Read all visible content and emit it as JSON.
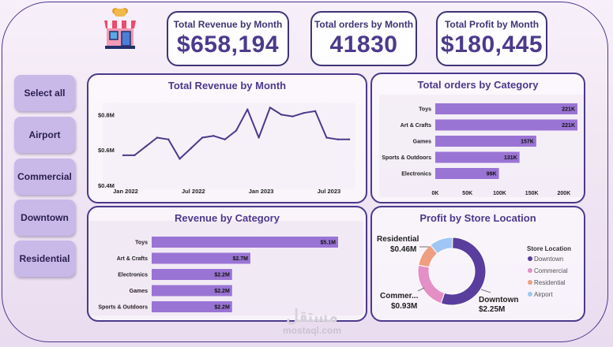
{
  "kpis": [
    {
      "title": "Total Revenue by Month",
      "value": "$658,194"
    },
    {
      "title": "Total orders by Month",
      "value": "41830"
    },
    {
      "title": "Total Profit by Month",
      "value": "$180,445"
    }
  ],
  "slicers": [
    "Select all",
    "Airport",
    "Commercial",
    "Downtown",
    "Residential"
  ],
  "colors": {
    "accent": "#4b3a8c",
    "bar": "#9a74d4",
    "donut": [
      "#5a3e9e",
      "#e48fc6",
      "#ee9f82",
      "#9fc6f4"
    ]
  },
  "watermark": {
    "line1": "مستقل",
    "line2": "mostaql.com"
  },
  "chart_data": [
    {
      "type": "line",
      "title": "Total Revenue by Month",
      "x": [
        "2022-01",
        "2022-02",
        "2022-03",
        "2022-04",
        "2022-05",
        "2022-06",
        "2022-07",
        "2022-08",
        "2022-09",
        "2022-10",
        "2022-11",
        "2022-12",
        "2023-01",
        "2023-02",
        "2023-03",
        "2023-04",
        "2023-05",
        "2023-06",
        "2023-07",
        "2023-08",
        "2023-09"
      ],
      "y": [
        0.57,
        0.57,
        0.62,
        0.67,
        0.66,
        0.55,
        0.61,
        0.67,
        0.68,
        0.66,
        0.71,
        0.83,
        0.67,
        0.84,
        0.8,
        0.79,
        0.81,
        0.82,
        0.67,
        0.66,
        0.66
      ],
      "xticks": [
        "Jan 2022",
        "Jul 2022",
        "Jan 2023",
        "Jul 2023"
      ],
      "yticks": [
        "$0.4M",
        "$0.6M",
        "$0.8M"
      ],
      "ylim": [
        0.4,
        0.9
      ],
      "unit": "$M"
    },
    {
      "type": "bar",
      "orientation": "horizontal",
      "title": "Total orders by Category",
      "categories": [
        "Toys",
        "Art & Crafts",
        "Games",
        "Sports & Outdoors",
        "Electronics"
      ],
      "values": [
        221000,
        221000,
        157000,
        131000,
        99000
      ],
      "labels": [
        "221K",
        "221K",
        "157K",
        "131K",
        "99K"
      ],
      "xticks": [
        "0K",
        "50K",
        "100K",
        "150K",
        "200K"
      ],
      "xlim": [
        0,
        221000
      ]
    },
    {
      "type": "bar",
      "orientation": "horizontal",
      "title": "Revenue by Category",
      "categories": [
        "Toys",
        "Art & Crafts",
        "Electronics",
        "Games",
        "Sports & Outdoors"
      ],
      "values": [
        5.1,
        2.7,
        2.2,
        2.2,
        2.2
      ],
      "labels": [
        "$5.1M",
        "$2.7M",
        "$2.2M",
        "$2.2M",
        "$2.2M"
      ],
      "unit": "$M"
    },
    {
      "type": "pie",
      "title": "Profit by Store Location",
      "categories": [
        "Downtown",
        "Commercial",
        "Residential",
        "Airport"
      ],
      "values": [
        2.25,
        0.93,
        0.46,
        0.46
      ],
      "callouts": [
        {
          "name": "Downtown",
          "value": "$2.25M"
        },
        {
          "name": "Commer...",
          "value": "$0.93M"
        },
        {
          "name": "Residential",
          "value": "$0.46M"
        }
      ],
      "legend_title": "Store Location",
      "legend": "right"
    }
  ]
}
